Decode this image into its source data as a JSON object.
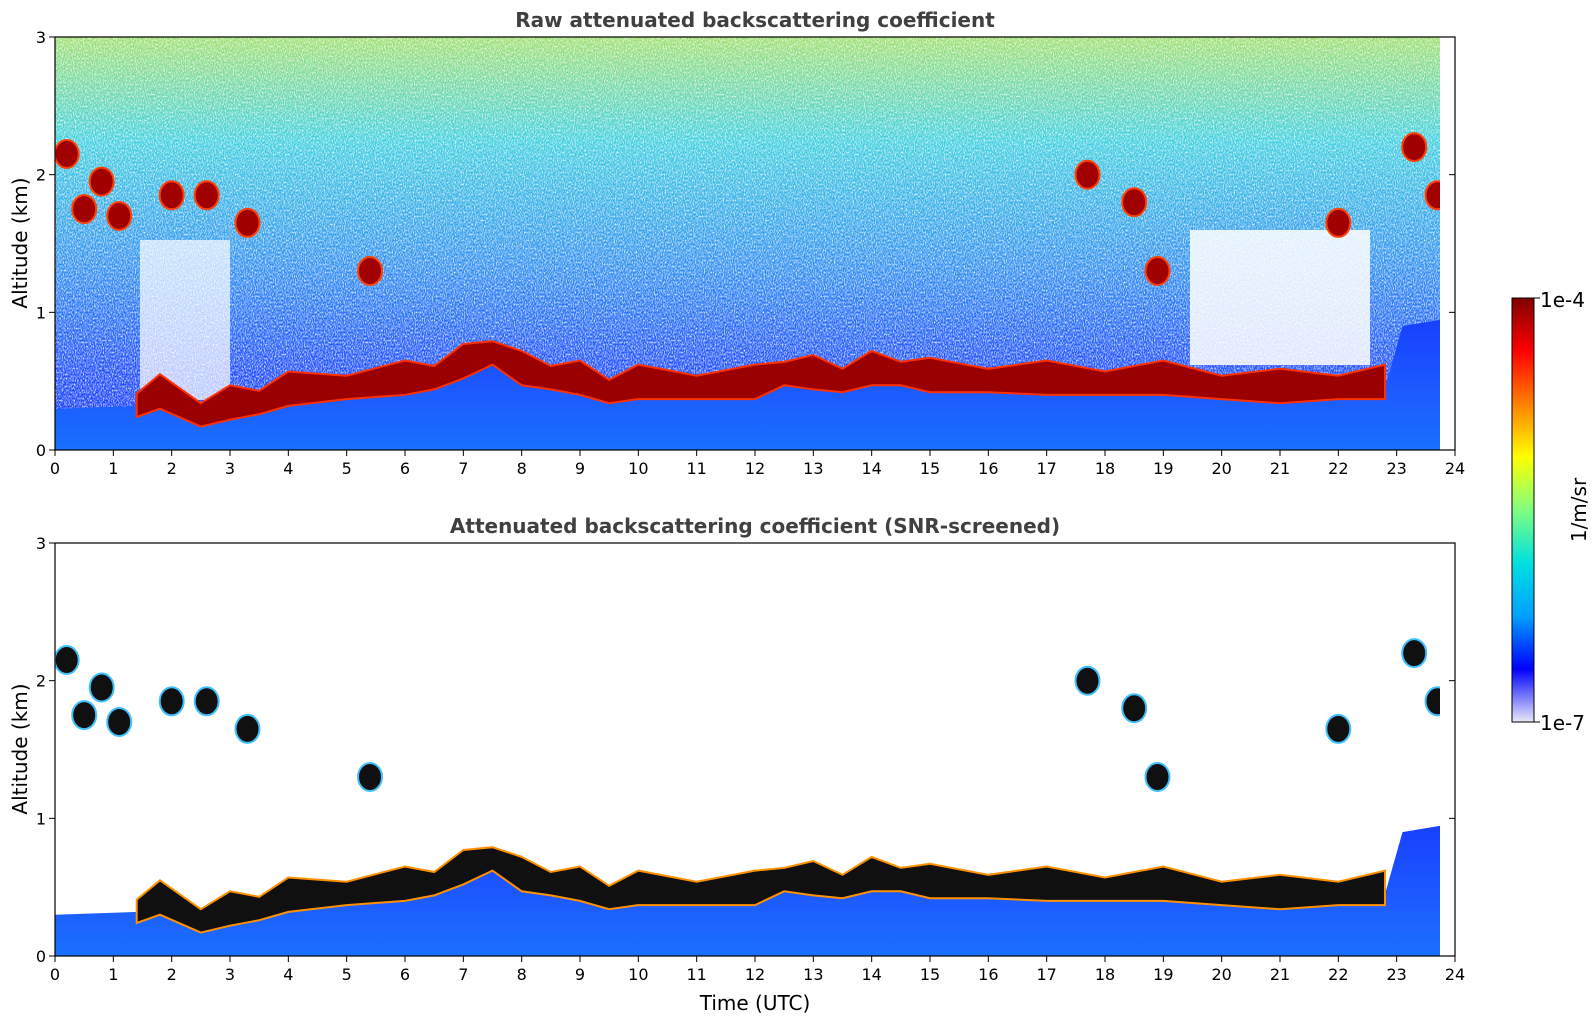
{
  "chart_data": [
    {
      "type": "heatmap",
      "title": "Raw attenuated backscattering coefficient",
      "xlabel": "",
      "ylabel": "Altitude (km)",
      "xlim": [
        0,
        24
      ],
      "ylim": [
        0,
        3
      ],
      "xticks": [
        "0",
        "1",
        "2",
        "3",
        "4",
        "5",
        "6",
        "7",
        "8",
        "9",
        "10",
        "11",
        "12",
        "13",
        "14",
        "15",
        "16",
        "17",
        "18",
        "19",
        "20",
        "21",
        "22",
        "23",
        "24"
      ],
      "yticks": [
        "0",
        "1",
        "2",
        "3"
      ],
      "layer_top_km": [
        [
          0,
          0.3
        ],
        [
          1.4,
          0.32
        ],
        [
          1.8,
          0.38
        ],
        [
          2.5,
          0.25
        ],
        [
          3,
          0.3
        ],
        [
          3.5,
          0.34
        ],
        [
          4,
          0.4
        ],
        [
          5,
          0.45
        ],
        [
          6,
          0.48
        ],
        [
          6.5,
          0.52
        ],
        [
          7,
          0.6
        ],
        [
          7.5,
          0.7
        ],
        [
          8,
          0.55
        ],
        [
          8.5,
          0.52
        ],
        [
          9,
          0.48
        ],
        [
          9.5,
          0.42
        ],
        [
          10,
          0.45
        ],
        [
          11,
          0.45
        ],
        [
          12,
          0.45
        ],
        [
          12.5,
          0.55
        ],
        [
          13,
          0.52
        ],
        [
          13.5,
          0.5
        ],
        [
          14,
          0.55
        ],
        [
          14.5,
          0.55
        ],
        [
          15,
          0.5
        ],
        [
          16,
          0.5
        ],
        [
          17,
          0.48
        ],
        [
          18,
          0.48
        ],
        [
          19,
          0.48
        ],
        [
          20,
          0.45
        ],
        [
          21,
          0.42
        ],
        [
          22,
          0.45
        ],
        [
          22.8,
          0.45
        ]
      ],
      "clouds": [
        {
          "t": 0.2,
          "alt": 2.15
        },
        {
          "t": 0.8,
          "alt": 1.95
        },
        {
          "t": 1.1,
          "alt": 1.7
        },
        {
          "t": 0.5,
          "alt": 1.75
        },
        {
          "t": 2.0,
          "alt": 1.85
        },
        {
          "t": 2.6,
          "alt": 1.85
        },
        {
          "t": 3.3,
          "alt": 1.65
        },
        {
          "t": 5.4,
          "alt": 1.3
        },
        {
          "t": 17.7,
          "alt": 2.0
        },
        {
          "t": 18.5,
          "alt": 1.8
        },
        {
          "t": 18.9,
          "alt": 1.3
        },
        {
          "t": 23.3,
          "alt": 2.2
        },
        {
          "t": 23.7,
          "alt": 1.85
        },
        {
          "t": 22.0,
          "alt": 1.65
        }
      ]
    },
    {
      "type": "heatmap",
      "title": "Attenuated backscattering coefficient (SNR-screened)",
      "xlabel": "Time (UTC)",
      "ylabel": "Altitude (km)",
      "xlim": [
        0,
        24
      ],
      "ylim": [
        0,
        3
      ],
      "xticks": [
        "0",
        "1",
        "2",
        "3",
        "4",
        "5",
        "6",
        "7",
        "8",
        "9",
        "10",
        "11",
        "12",
        "13",
        "14",
        "15",
        "16",
        "17",
        "18",
        "19",
        "20",
        "21",
        "22",
        "23",
        "24"
      ],
      "yticks": [
        "0",
        "1",
        "2",
        "3"
      ]
    }
  ],
  "colorbar": {
    "max_label": "1e-4",
    "min_label": "1e-7",
    "unit_label": "1/m/sr",
    "range": [
      1e-07,
      0.0001
    ],
    "scale": "log",
    "colormap": "jet",
    "colors": [
      "#e8e8f8",
      "#0000ff",
      "#00a0ff",
      "#00e0e0",
      "#80ff80",
      "#ffff00",
      "#ff8000",
      "#ff0000",
      "#800000"
    ]
  }
}
